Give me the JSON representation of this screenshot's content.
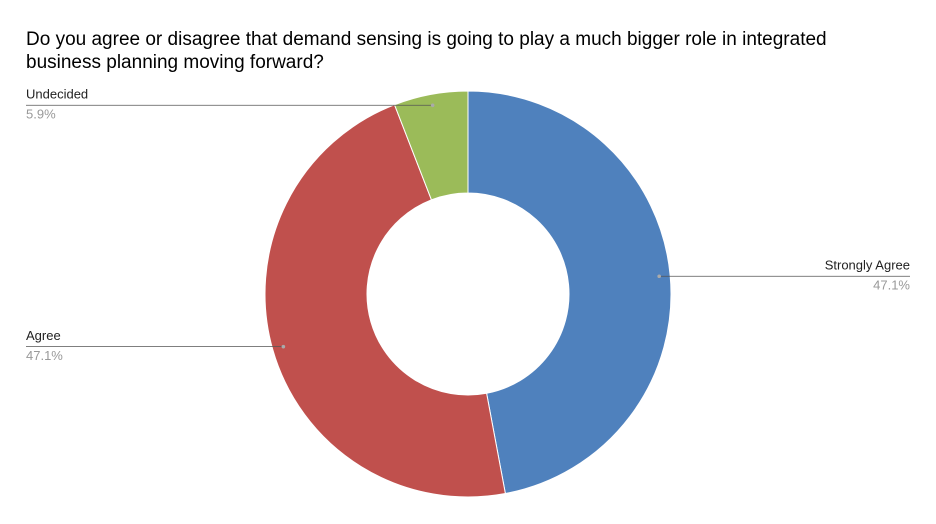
{
  "chart_data": {
    "type": "donut",
    "title": "Do you agree or disagree that demand sensing is going to play a much bigger role in integrated business planning moving forward?",
    "categories": [
      "Strongly Agree",
      "Agree",
      "Undecided"
    ],
    "values": [
      47.1,
      47.1,
      5.9
    ],
    "value_labels": [
      "47.1%",
      "47.1%",
      "5.9%"
    ],
    "colors": [
      "#4f81bd",
      "#c0504d",
      "#9bbb59"
    ]
  }
}
